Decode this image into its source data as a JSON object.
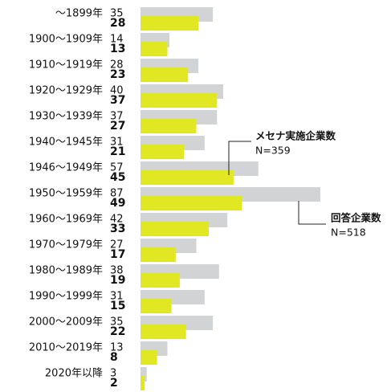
{
  "chart_data": {
    "type": "bar",
    "categories": [
      "～1899年",
      "1900～1909年",
      "1910～1919年",
      "1920～1929年",
      "1930～1939年",
      "1940～1945年",
      "1946～1949年",
      "1950～1959年",
      "1960～1969年",
      "1970～1979年",
      "1980～1989年",
      "1990～1999年",
      "2000～2009年",
      "2010～2019年",
      "2020年以降"
    ],
    "series": [
      {
        "name": "回答企業数",
        "color": "#d2d3d5",
        "values": [
          35,
          14,
          28,
          40,
          37,
          31,
          57,
          87,
          42,
          27,
          38,
          31,
          35,
          13,
          3
        ]
      },
      {
        "name": "メセナ実施企業数",
        "color": "#e1e722",
        "values": [
          28,
          13,
          23,
          37,
          27,
          21,
          45,
          49,
          33,
          17,
          19,
          15,
          22,
          8,
          2
        ]
      }
    ],
    "annotations": [
      "N=518",
      "N=359"
    ]
  }
}
